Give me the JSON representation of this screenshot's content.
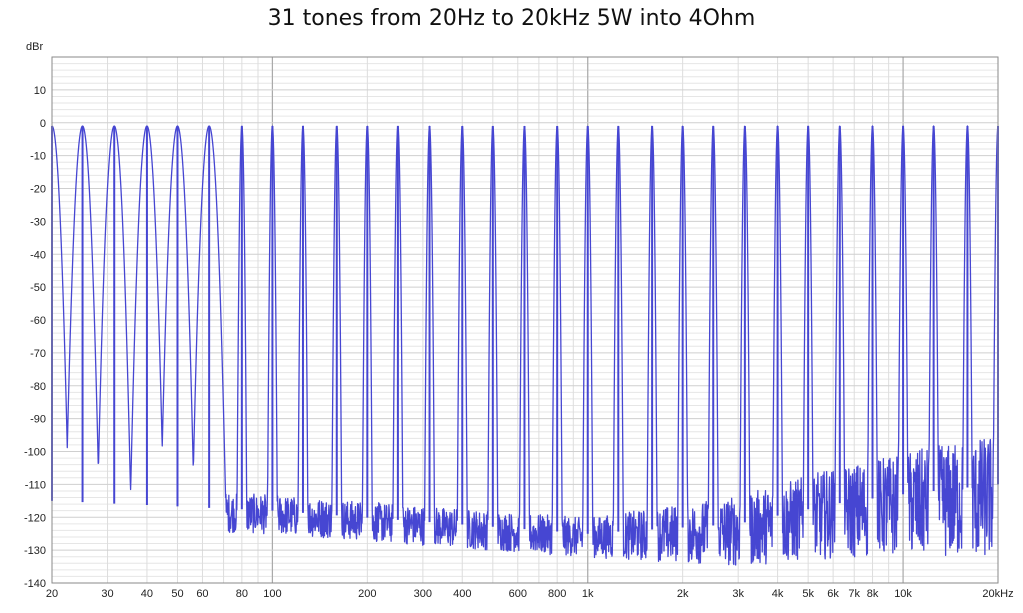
{
  "chart_data": {
    "type": "line",
    "title": "31 tones from 20Hz to 20kHz 5W into 4Ohm",
    "ylabel": "dBr",
    "xlabel": "",
    "x_scale": "log",
    "xlim": [
      20,
      20000
    ],
    "ylim": [
      -140,
      20
    ],
    "grid": true,
    "line_color": "#4646d2",
    "y_ticks": [
      10,
      0,
      -10,
      -20,
      -30,
      -40,
      -50,
      -60,
      -70,
      -80,
      -90,
      -100,
      -110,
      -120,
      -130,
      -140
    ],
    "x_ticks": [
      {
        "value": 20,
        "label": "20"
      },
      {
        "value": 30,
        "label": "30"
      },
      {
        "value": 40,
        "label": "40"
      },
      {
        "value": 50,
        "label": "50"
      },
      {
        "value": 60,
        "label": "60"
      },
      {
        "value": 80,
        "label": "80"
      },
      {
        "value": 100,
        "label": "100"
      },
      {
        "value": 200,
        "label": "200"
      },
      {
        "value": 300,
        "label": "300"
      },
      {
        "value": 400,
        "label": "400"
      },
      {
        "value": 600,
        "label": "600"
      },
      {
        "value": 800,
        "label": "800"
      },
      {
        "value": 1000,
        "label": "1k"
      },
      {
        "value": 2000,
        "label": "2k"
      },
      {
        "value": 3000,
        "label": "3k"
      },
      {
        "value": 4000,
        "label": "4k"
      },
      {
        "value": 5000,
        "label": "5k"
      },
      {
        "value": 6000,
        "label": "6k"
      },
      {
        "value": 7000,
        "label": "7k"
      },
      {
        "value": 8000,
        "label": "8k"
      },
      {
        "value": 10000,
        "label": "10k"
      },
      {
        "value": 20000,
        "label": "20kHz"
      }
    ],
    "series": [
      {
        "tones_hz": [
          20,
          25,
          31.5,
          40,
          50,
          63,
          80,
          100,
          125,
          160,
          200,
          250,
          315,
          400,
          500,
          630,
          800,
          1000,
          1250,
          1600,
          2000,
          2500,
          3150,
          4000,
          5000,
          6300,
          8000,
          10000,
          12500,
          16000,
          20000
        ],
        "tone_level_db": -1,
        "noise_floor": [
          {
            "x": 20,
            "y": -115
          },
          {
            "x": 100,
            "y": -118
          },
          {
            "x": 1000,
            "y": -125
          },
          {
            "x": 3000,
            "y": -122
          },
          {
            "x": 6000,
            "y": -116
          },
          {
            "x": 10000,
            "y": -113
          },
          {
            "x": 20000,
            "y": -110
          }
        ]
      }
    ]
  }
}
